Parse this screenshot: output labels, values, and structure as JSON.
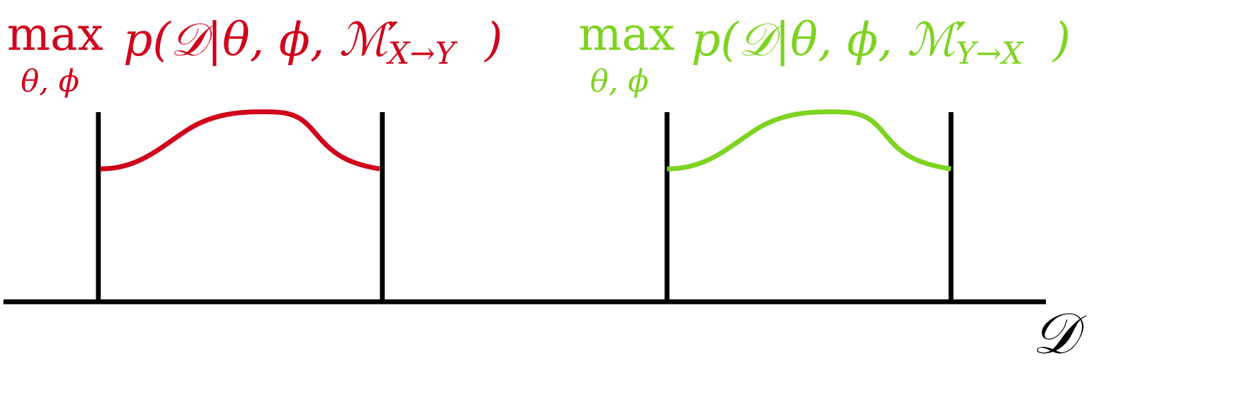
{
  "colors": {
    "left_curve": "#d0021b",
    "right_curve": "#7ed321",
    "axis": "#000000",
    "background": "#ffffff"
  },
  "labels": {
    "left": {
      "max": "max",
      "under": "θ, ϕ",
      "expr": "p(𝒟|θ, ϕ, ℳ′",
      "subscript": "X→Y",
      "close": ")"
    },
    "right": {
      "max": "max",
      "under": "θ, ϕ",
      "expr": "p(𝒟|θ, ϕ, ℳ′",
      "subscript": "Y→X",
      "close": ")"
    },
    "axis": "𝒟"
  }
}
